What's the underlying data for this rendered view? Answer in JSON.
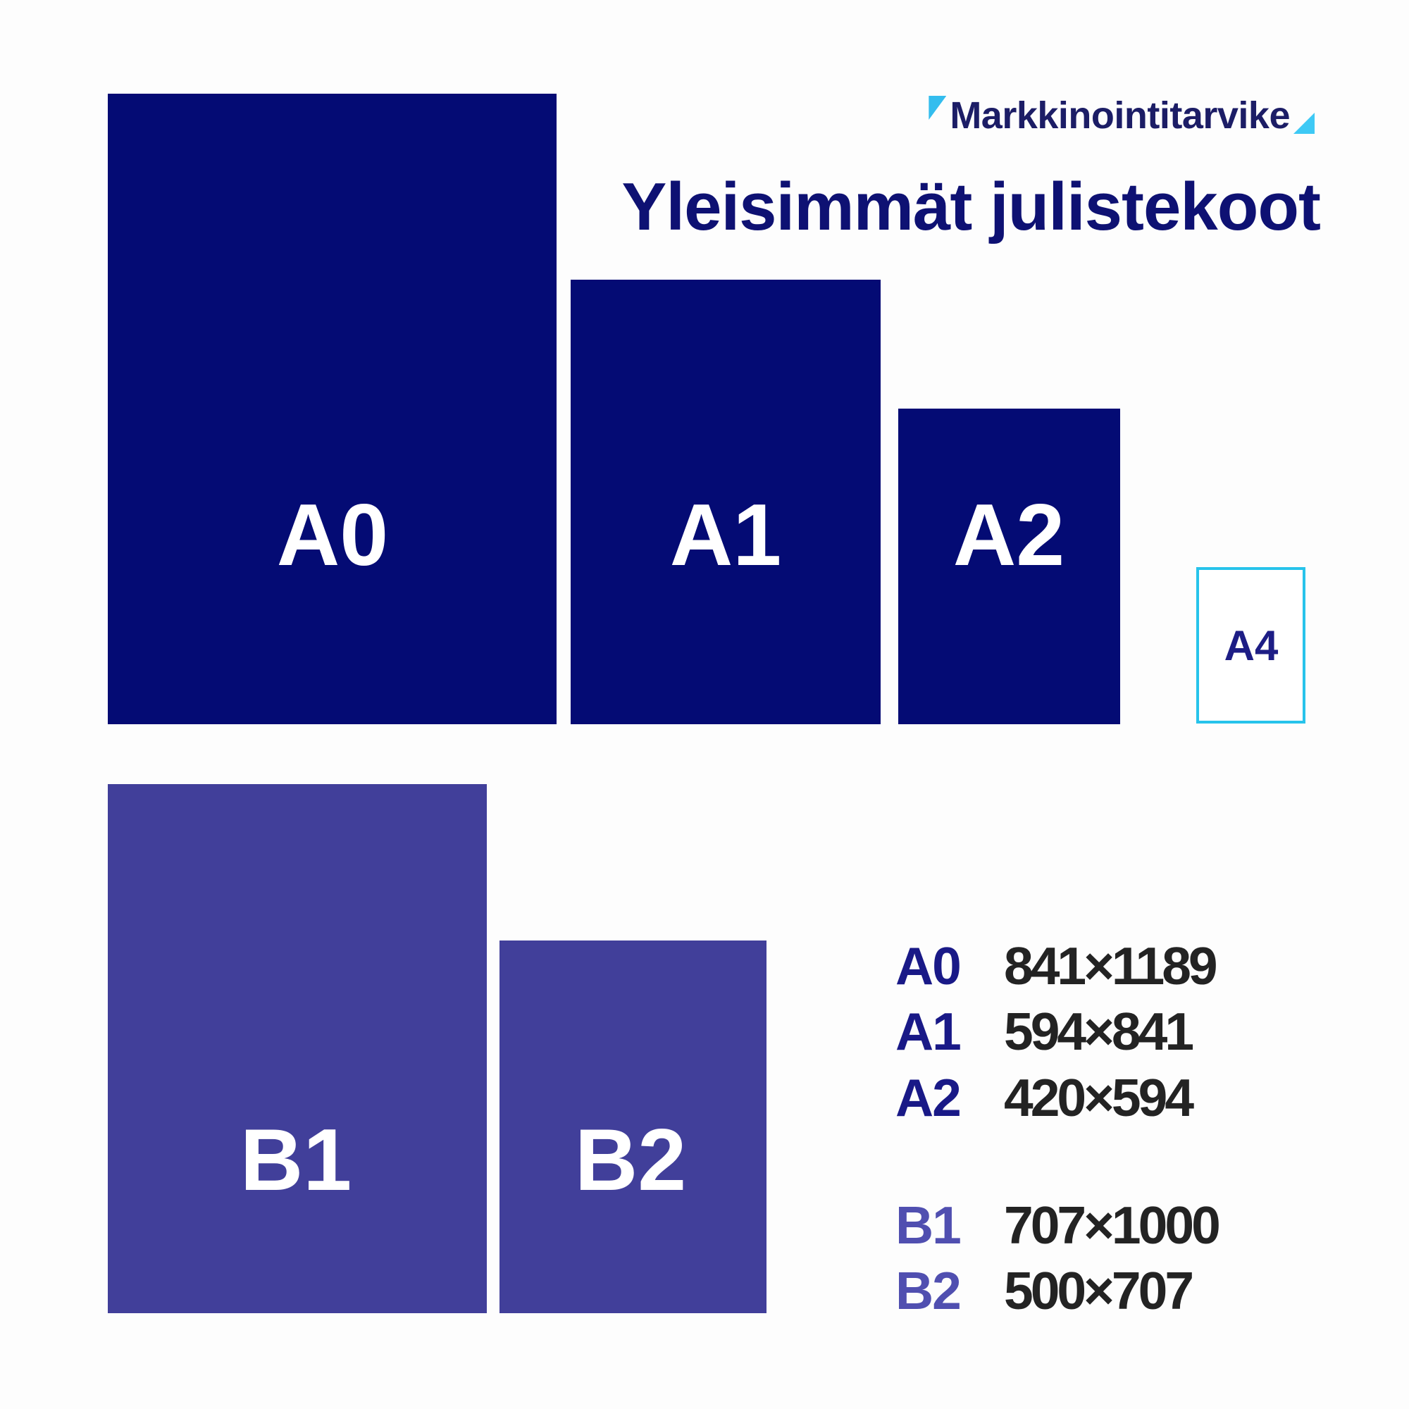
{
  "meta": {
    "background": "#fdfdfd"
  },
  "brand": {
    "logo_text": "Markkinointitarvike",
    "logo_text_color": "#1c1d66",
    "triangle_cyan_left": "#33bdee",
    "triangle_cyan_right": "#3ec9f5"
  },
  "title": {
    "text": "Yleisimmät julistekoot",
    "color": "#0e1173"
  },
  "palette": {
    "a_series_navy": "#040b74",
    "b_series_indigo": "#413f9a",
    "a4_border_cyan": "#27c3eb",
    "poster_label_white": "#ffffff",
    "legend_a_label_color": "#191987",
    "legend_b_label_color": "#504fb0",
    "legend_value_color": "#232323"
  },
  "posters": {
    "a0": {
      "label": "A0"
    },
    "a1": {
      "label": "A1"
    },
    "a2": {
      "label": "A2"
    },
    "a4": {
      "label": "A4"
    },
    "b1": {
      "label": "B1"
    },
    "b2": {
      "label": "B2"
    }
  },
  "legend": {
    "a_rows": [
      {
        "label": "A0",
        "value": "841×1189"
      },
      {
        "label": "A1",
        "value": "594×841"
      },
      {
        "label": "A2",
        "value": "420×594"
      }
    ],
    "b_rows": [
      {
        "label": "B1",
        "value": "707×1000"
      },
      {
        "label": "B2",
        "value": "500×707"
      }
    ]
  }
}
